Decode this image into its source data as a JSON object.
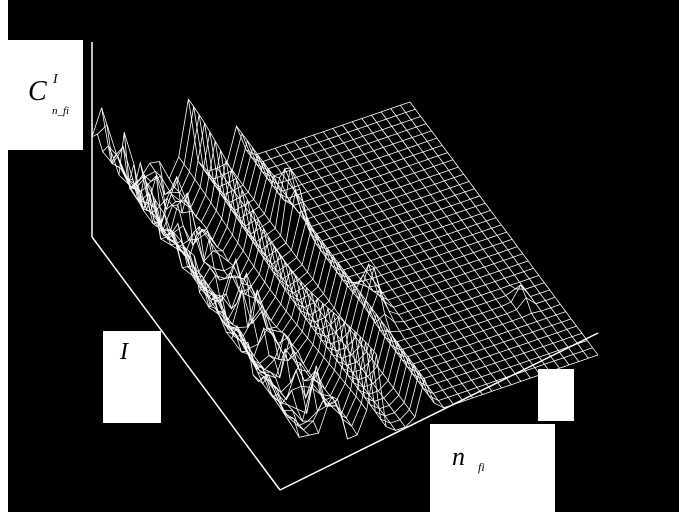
{
  "chart_data": {
    "type": "surface-3d-wireframe",
    "title": "",
    "axes": {
      "z": {
        "label_main": "C",
        "label_sup": "I",
        "label_sub": "n_fi"
      },
      "y": {
        "label_main": "I"
      },
      "x": {
        "label_main": "n",
        "label_sub": "fi"
      }
    },
    "grid": {
      "x_count": 34,
      "y_count": 36
    },
    "colors": {
      "background": "#000000",
      "mesh": "#ffffff",
      "label_box": "#ffffff"
    }
  }
}
